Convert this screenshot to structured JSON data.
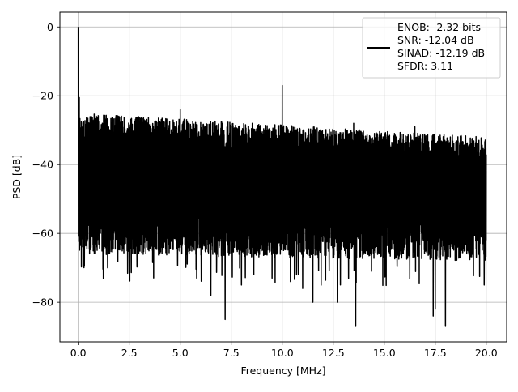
{
  "chart_data": {
    "type": "line",
    "title": "",
    "xlabel": "Frequency [MHz]",
    "ylabel": "PSD [dB]",
    "xlim": [
      -0.9,
      21.0
    ],
    "ylim": [
      -91.5,
      4.3
    ],
    "x_ticks": [
      0.0,
      2.5,
      5.0,
      7.5,
      10.0,
      12.5,
      15.0,
      17.5,
      20.0
    ],
    "x_tick_labels": [
      "0.0",
      "2.5",
      "5.0",
      "7.5",
      "10.0",
      "12.5",
      "15.0",
      "17.5",
      "20.0"
    ],
    "y_ticks": [
      0,
      -20,
      -40,
      -60,
      -80
    ],
    "y_tick_labels": [
      "0",
      "−20",
      "−40",
      "−60",
      "−80"
    ],
    "grid": true,
    "legend_position": "top-right",
    "series": [
      {
        "name": "ENOB: -2.32 bits\nSNR: -12.04 dB\nSINAD: -12.19 dB\nSFDR: 3.11",
        "color": "#000000",
        "x_range": [
          0.0,
          20.0
        ],
        "noise_ceiling_endpoints": [
          -25,
          -32
        ],
        "noise_floor_endpoints": [
          -52,
          -54
        ],
        "peaks": [
          {
            "x": 0.0,
            "y": 0.0
          },
          {
            "x": 0.05,
            "y": -20.5
          },
          {
            "x": 5.0,
            "y": -24.0
          },
          {
            "x": 10.0,
            "y": -17.0
          },
          {
            "x": 13.5,
            "y": -28.0
          },
          {
            "x": 16.5,
            "y": -29.0
          }
        ],
        "dips": [
          {
            "x": 6.5,
            "y": -78.0
          },
          {
            "x": 7.2,
            "y": -85.0
          },
          {
            "x": 8.0,
            "y": -75.0
          },
          {
            "x": 9.5,
            "y": -73.0
          },
          {
            "x": 10.4,
            "y": -74.0
          },
          {
            "x": 11.0,
            "y": -76.0
          },
          {
            "x": 11.5,
            "y": -80.0
          },
          {
            "x": 12.7,
            "y": -80.0
          },
          {
            "x": 13.6,
            "y": -87.0
          },
          {
            "x": 17.4,
            "y": -84.0
          },
          {
            "x": 17.5,
            "y": -82.0
          },
          {
            "x": 18.0,
            "y": -87.0
          },
          {
            "x": 19.9,
            "y": -75.0
          }
        ]
      }
    ],
    "legend_lines": [
      "ENOB: -2.32 bits",
      "SNR: -12.04 dB",
      "SINAD: -12.19 dB",
      "SFDR: 3.11"
    ]
  }
}
